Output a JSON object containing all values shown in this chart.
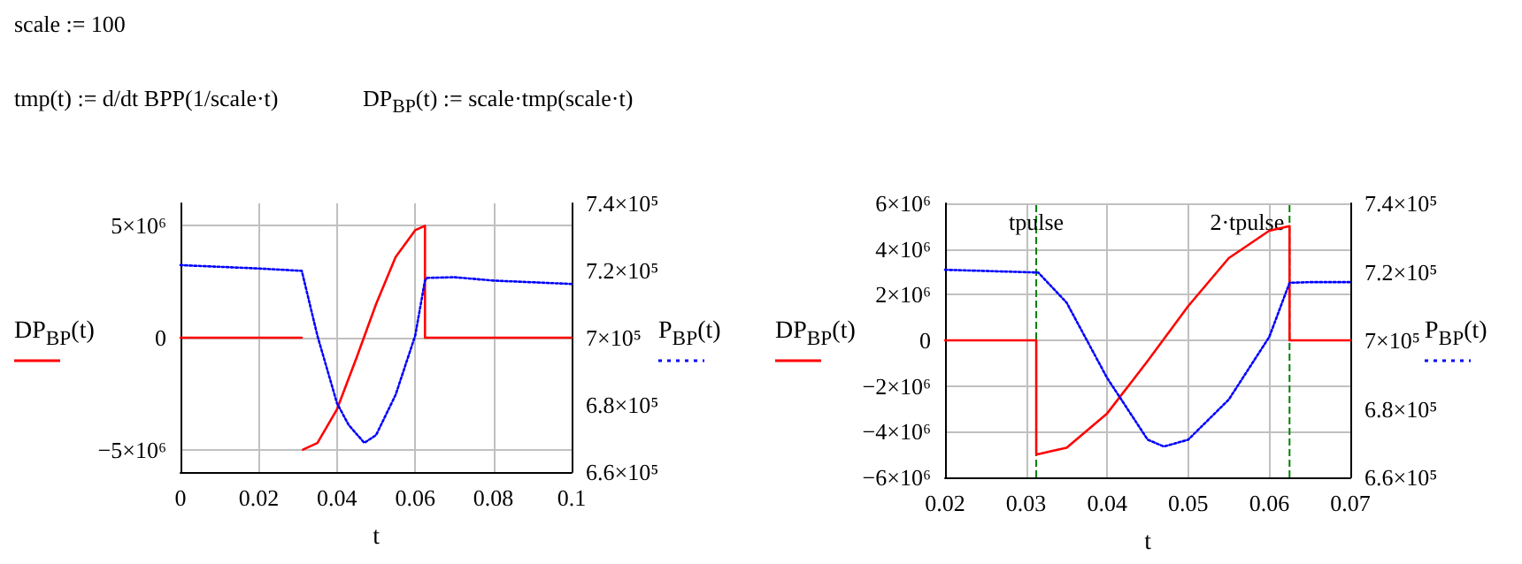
{
  "chart_data": [
    {
      "type": "line",
      "annotations": [
        "scale := 100",
        "tmp(t) := d/dt BPP(1/scale·t)",
        "DP$_{BP}$(t) := scale·tmp(scale·t)"
      ],
      "xlabel": "t",
      "ylabel": "DP$_{BP}$(t)",
      "y2label": "P$_{BP}$(t)",
      "xlim": [
        0,
        0.1
      ],
      "xticks": [
        0,
        0.02,
        0.04,
        0.06,
        0.08,
        0.1
      ],
      "ylim": [
        -6000000,
        6000000
      ],
      "yticks": [
        {
          "value": -5000000,
          "label": "−5×10⁶"
        },
        0,
        {
          "value": 5000000,
          "label": "5×10⁶"
        }
      ],
      "y2lim": [
        660000,
        740000
      ],
      "y2ticks": [
        {
          "value": 660000,
          "label": "6.6×10⁵"
        },
        {
          "value": 680000,
          "label": "6.8×10⁵"
        },
        {
          "value": 700000,
          "label": "7×10⁵"
        },
        {
          "value": 720000,
          "label": "7.2×10⁵"
        },
        {
          "value": 740000,
          "label": "7.4×10⁵"
        }
      ],
      "grid": true,
      "marker": "none",
      "series": [
        {
          "color": "#ff0000",
          "line_style": "solid",
          "x": [
            0,
            0.031
          ],
          "values": [
            0,
            0
          ]
        },
        {
          "color": "#ff0000",
          "line_style": "solid",
          "x": [
            0.0313,
            0.035,
            0.04,
            0.045,
            0.05,
            0.055,
            0.06,
            0.0625,
            0.0625,
            0.07,
            0.08,
            0.1
          ],
          "values": [
            -5000000,
            -4700000,
            -3200000,
            -900000,
            1500000,
            3600000,
            4800000,
            5000000,
            0,
            0,
            0,
            0
          ]
        },
        {
          "color": "#0000ff",
          "line_style": "dotted",
          "axis": "y2",
          "x": [
            0,
            0.02,
            0.031,
            0.035,
            0.04,
            0.043,
            0.047,
            0.05,
            0.055,
            0.06,
            0.0625,
            0.063,
            0.07,
            0.08,
            0.1
          ],
          "values": [
            721600,
            720600,
            719900,
            700600,
            680500,
            674000,
            668700,
            671000,
            683000,
            700600,
            717000,
            717800,
            718000,
            717000,
            716000
          ]
        }
      ]
    },
    {
      "type": "line",
      "xlabel": "t",
      "ylabel": "DP$_{BP}$(t)",
      "y2label": "P$_{BP}$(t)",
      "xlim": [
        0.02,
        0.07
      ],
      "xticks": [
        0.02,
        0.03,
        0.04,
        0.05,
        0.06,
        0.07
      ],
      "ylim": [
        -6000000,
        6000000
      ],
      "yticks": [
        {
          "value": -6000000,
          "label": "−6×10⁶"
        },
        {
          "value": -4000000,
          "label": "−4×10⁶"
        },
        {
          "value": -2000000,
          "label": "−2×10⁶"
        },
        0,
        {
          "value": 2000000,
          "label": "2×10⁶"
        },
        {
          "value": 4000000,
          "label": "4×10⁶"
        },
        {
          "value": 6000000,
          "label": "6×10⁶"
        }
      ],
      "y2lim": [
        660000,
        740000
      ],
      "y2ticks": [
        {
          "value": 660000,
          "label": "6.6×10⁵"
        },
        {
          "value": 680000,
          "label": "6.8×10⁵"
        },
        {
          "value": 700000,
          "label": "7×10⁵"
        },
        {
          "value": 720000,
          "label": "7.2×10⁵"
        },
        {
          "value": 740000,
          "label": "7.4×10⁵"
        }
      ],
      "grid": true,
      "marker": "none",
      "ref_lines": [
        {
          "axis": "x",
          "value": 0.03125,
          "label": "tpulse",
          "color": "#008000",
          "line_style": "dashed"
        },
        {
          "axis": "x",
          "value": 0.0625,
          "label": "2·tpulse",
          "color": "#008000",
          "line_style": "dashed"
        }
      ],
      "series": [
        {
          "color": "#ff0000",
          "line_style": "solid",
          "x": [
            0.02,
            0.03125,
            0.03125,
            0.035,
            0.04,
            0.045,
            0.05,
            0.055,
            0.06,
            0.0625,
            0.0625,
            0.07
          ],
          "values": [
            0,
            0,
            -5000000,
            -4700000,
            -3200000,
            -900000,
            1500000,
            3600000,
            4800000,
            5000000,
            0,
            0
          ]
        },
        {
          "color": "#0000ff",
          "line_style": "dotted",
          "axis": "y2",
          "x": [
            0.02,
            0.0315,
            0.035,
            0.04,
            0.045,
            0.047,
            0.05,
            0.055,
            0.06,
            0.0625,
            0.065,
            0.07
          ],
          "values": [
            720600,
            719800,
            711000,
            689000,
            671000,
            669000,
            671000,
            682700,
            701000,
            716800,
            717000,
            717000
          ]
        }
      ]
    }
  ]
}
